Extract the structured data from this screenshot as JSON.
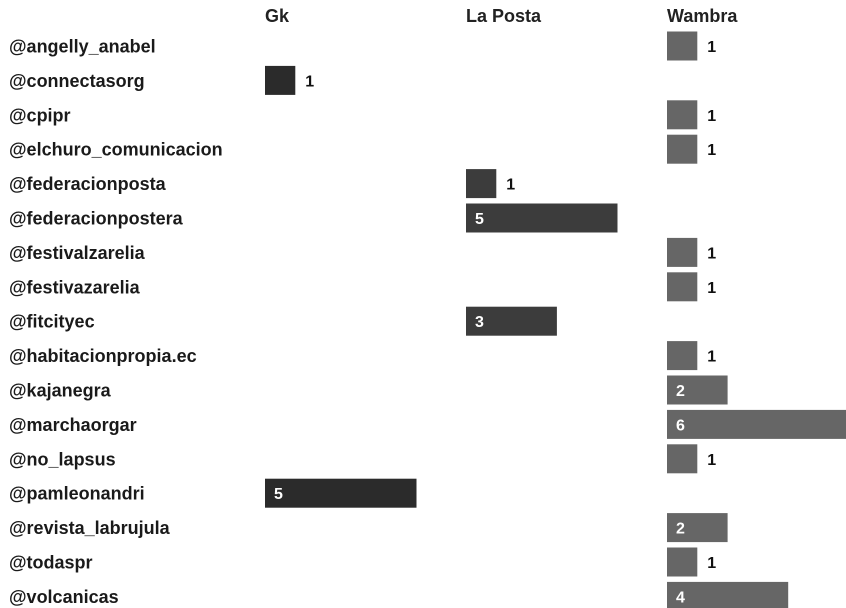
{
  "chart_data": {
    "type": "bar",
    "orientation": "horizontal",
    "layout": "small-multiples",
    "categories": [
      "@angelly_anabel",
      "@connectasorg",
      "@cpipr",
      "@elchuro_comunicacion",
      "@federacionposta",
      "@federacionpostera",
      "@festivalzarelia",
      "@festivazarelia",
      "@fitcityec",
      "@habitacionpropia.ec",
      "@kajanegra",
      "@marchaorgar",
      "@no_lapsus",
      "@pamleonandri",
      "@revista_labrujula",
      "@todaspr",
      "@volcanicas"
    ],
    "series": [
      {
        "name": "Gk",
        "color": "#2b2b2b",
        "values": [
          null,
          1,
          null,
          null,
          null,
          null,
          null,
          null,
          null,
          null,
          null,
          null,
          null,
          5,
          null,
          null,
          null
        ]
      },
      {
        "name": "La Posta",
        "color": "#3c3c3c",
        "values": [
          null,
          null,
          null,
          null,
          1,
          5,
          null,
          null,
          3,
          null,
          null,
          null,
          null,
          null,
          null,
          null,
          null
        ]
      },
      {
        "name": "Wambra",
        "color": "#666666",
        "values": [
          1,
          null,
          1,
          1,
          null,
          null,
          1,
          1,
          null,
          1,
          2,
          6,
          1,
          null,
          2,
          1,
          4
        ]
      }
    ],
    "xlim": [
      0,
      6
    ],
    "grid": false,
    "legend": "none",
    "title": "",
    "xlabel": "",
    "ylabel": ""
  }
}
